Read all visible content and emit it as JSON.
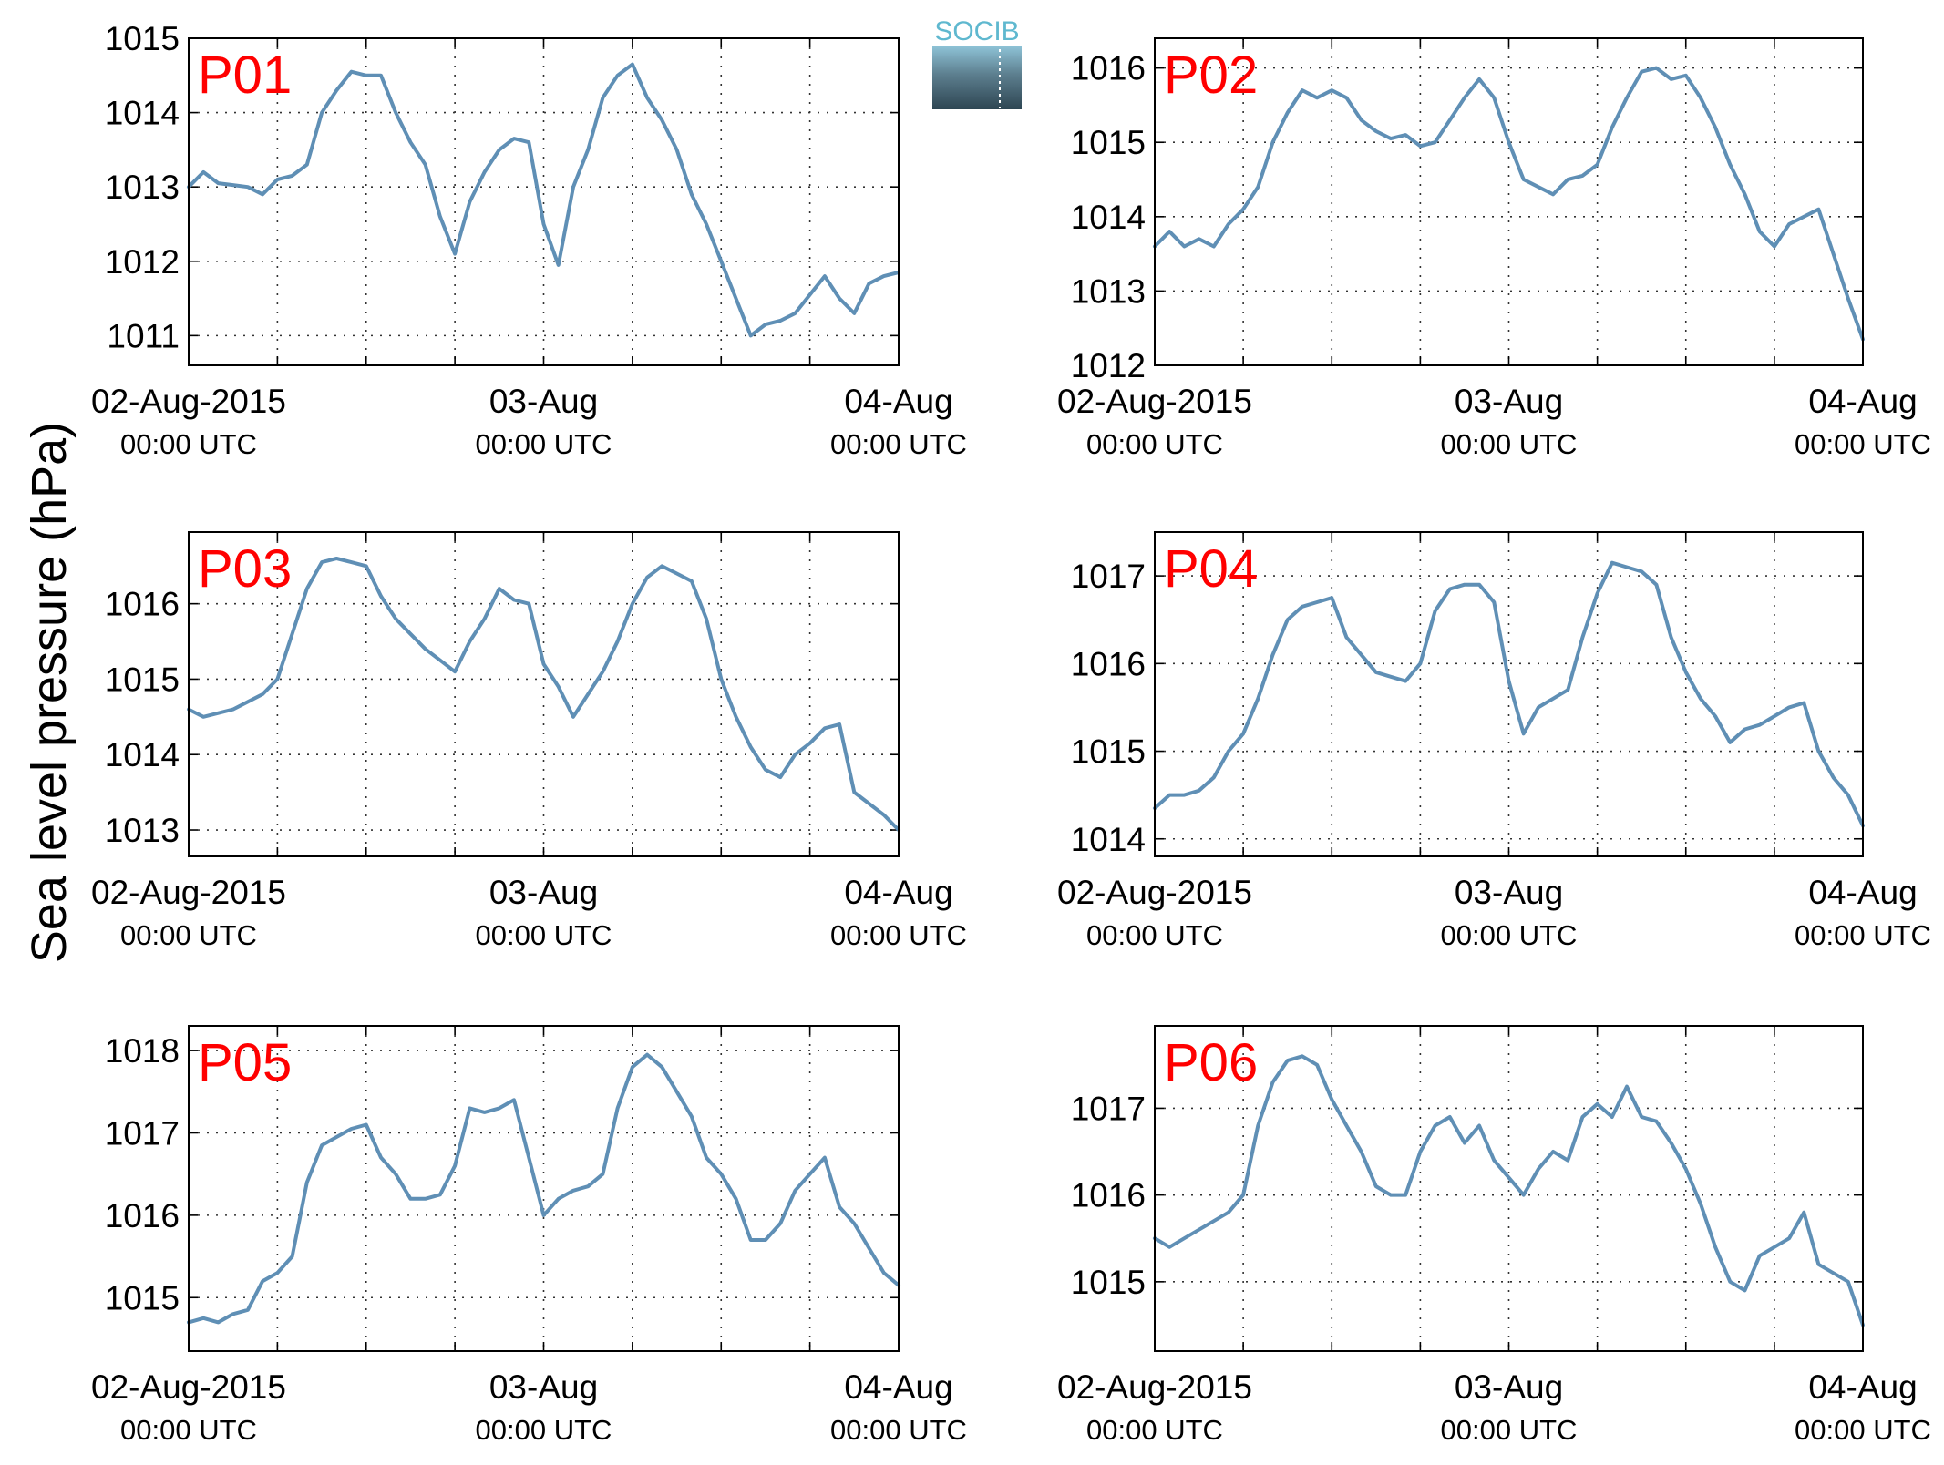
{
  "figure": {
    "ylabel": "Sea level pressure (hPa)",
    "logo_text": "SOCIB",
    "series_color": "#5f8fb5",
    "label_color": "#ff0000"
  },
  "chart_data": [
    {
      "type": "line",
      "label": "P01",
      "xlim": [
        "02-Aug-2015 00:00 UTC",
        "04-Aug-2015 00:00 UTC"
      ],
      "x_ticks": [
        "02-Aug-2015\n00:00 UTC",
        "03-Aug\n00:00 UTC",
        "04-Aug\n00:00 UTC"
      ],
      "ylim": [
        1010.6,
        1015.0
      ],
      "y_ticks": [
        1011,
        1012,
        1013,
        1014,
        1015
      ],
      "grid": true,
      "x_hours": [
        0,
        1,
        2,
        4,
        5,
        6,
        7,
        8,
        9,
        10,
        11,
        12,
        13,
        14,
        15,
        16,
        17,
        18,
        19,
        20,
        21,
        22,
        23,
        24,
        25,
        26,
        27,
        28,
        29,
        30,
        31,
        32,
        33,
        34,
        35,
        36,
        37,
        38,
        39,
        40,
        41,
        42,
        43,
        44,
        45,
        46,
        47,
        48
      ],
      "values": [
        1013.0,
        1013.2,
        1013.05,
        1013.0,
        1012.9,
        1013.1,
        1013.15,
        1013.3,
        1014.0,
        1014.3,
        1014.55,
        1014.5,
        1014.5,
        1014.0,
        1013.6,
        1013.3,
        1012.6,
        1012.1,
        1012.8,
        1013.2,
        1013.5,
        1013.65,
        1013.6,
        1012.5,
        1011.95,
        1013.0,
        1013.5,
        1014.2,
        1014.5,
        1014.65,
        1014.2,
        1013.9,
        1013.5,
        1012.9,
        1012.5,
        1012.0,
        1011.5,
        1011.0,
        1011.15,
        1011.2,
        1011.3,
        1011.55,
        1011.8,
        1011.5,
        1011.3,
        1011.7,
        1011.8,
        1011.85
      ]
    },
    {
      "type": "line",
      "label": "P02",
      "xlim": [
        "02-Aug-2015 00:00 UTC",
        "04-Aug-2015 00:00 UTC"
      ],
      "x_ticks": [
        "02-Aug-2015\n00:00 UTC",
        "03-Aug\n00:00 UTC",
        "04-Aug\n00:00 UTC"
      ],
      "ylim": [
        1012.0,
        1016.4
      ],
      "y_ticks": [
        1012,
        1013,
        1014,
        1015,
        1016
      ],
      "grid": true,
      "x_hours": [
        0,
        1,
        2,
        3,
        4,
        5,
        6,
        7,
        8,
        9,
        10,
        11,
        12,
        13,
        14,
        15,
        16,
        17,
        18,
        19,
        20,
        21,
        22,
        23,
        24,
        25,
        26,
        27,
        28,
        29,
        30,
        31,
        32,
        33,
        34,
        35,
        36,
        37,
        38,
        39,
        40,
        41,
        42,
        43,
        44,
        45,
        46,
        47,
        48
      ],
      "values": [
        1013.6,
        1013.8,
        1013.6,
        1013.7,
        1013.6,
        1013.9,
        1014.1,
        1014.4,
        1015.0,
        1015.4,
        1015.7,
        1015.6,
        1015.7,
        1015.6,
        1015.3,
        1015.15,
        1015.05,
        1015.1,
        1014.95,
        1015.0,
        1015.3,
        1015.6,
        1015.85,
        1015.6,
        1015.0,
        1014.5,
        1014.4,
        1014.3,
        1014.5,
        1014.55,
        1014.7,
        1015.2,
        1015.6,
        1015.95,
        1016.0,
        1015.85,
        1015.9,
        1015.6,
        1015.2,
        1014.7,
        1014.3,
        1013.8,
        1013.6,
        1013.9,
        1014.0,
        1014.1,
        1013.5,
        1012.9,
        1012.35
      ]
    },
    {
      "type": "line",
      "label": "P03",
      "xlim": [
        "02-Aug-2015 00:00 UTC",
        "04-Aug-2015 00:00 UTC"
      ],
      "x_ticks": [
        "02-Aug-2015\n00:00 UTC",
        "03-Aug\n00:00 UTC",
        "04-Aug\n00:00 UTC"
      ],
      "ylim": [
        1012.65,
        1016.95
      ],
      "y_ticks": [
        1013,
        1014,
        1015,
        1016
      ],
      "grid": true,
      "x_hours": [
        0,
        1,
        2,
        3,
        4,
        5,
        6,
        7,
        8,
        9,
        10,
        11,
        12,
        13,
        14,
        15,
        16,
        17,
        18,
        19,
        20,
        21,
        22,
        23,
        24,
        25,
        26,
        27,
        28,
        29,
        30,
        31,
        32,
        33,
        34,
        35,
        36,
        37,
        38,
        39,
        40,
        41,
        42,
        43,
        44,
        45,
        46,
        47,
        48
      ],
      "values": [
        1014.6,
        1014.5,
        1014.55,
        1014.6,
        1014.7,
        1014.8,
        1015.0,
        1015.6,
        1016.2,
        1016.55,
        1016.6,
        1016.55,
        1016.5,
        1016.1,
        1015.8,
        1015.6,
        1015.4,
        1015.25,
        1015.1,
        1015.5,
        1015.8,
        1016.2,
        1016.05,
        1016.0,
        1015.2,
        1014.9,
        1014.5,
        1014.8,
        1015.1,
        1015.5,
        1016.0,
        1016.35,
        1016.5,
        1016.4,
        1016.3,
        1015.8,
        1015.0,
        1014.5,
        1014.1,
        1013.8,
        1013.7,
        1014.0,
        1014.15,
        1014.35,
        1014.4,
        1013.5,
        1013.35,
        1013.2,
        1013.0
      ]
    },
    {
      "type": "line",
      "label": "P04",
      "xlim": [
        "02-Aug-2015 00:00 UTC",
        "04-Aug-2015 00:00 UTC"
      ],
      "x_ticks": [
        "02-Aug-2015\n00:00 UTC",
        "03-Aug\n00:00 UTC",
        "04-Aug\n00:00 UTC"
      ],
      "ylim": [
        1013.8,
        1017.5
      ],
      "y_ticks": [
        1014,
        1015,
        1016,
        1017
      ],
      "grid": true,
      "x_hours": [
        0,
        1,
        2,
        3,
        4,
        5,
        6,
        7,
        8,
        9,
        10,
        11,
        12,
        13,
        14,
        15,
        16,
        17,
        18,
        19,
        20,
        21,
        22,
        23,
        24,
        25,
        26,
        27,
        28,
        29,
        30,
        31,
        32,
        33,
        34,
        35,
        36,
        37,
        38,
        39,
        40,
        41,
        42,
        43,
        44,
        45,
        46,
        47,
        48
      ],
      "values": [
        1014.35,
        1014.5,
        1014.5,
        1014.55,
        1014.7,
        1015.0,
        1015.2,
        1015.6,
        1016.1,
        1016.5,
        1016.65,
        1016.7,
        1016.75,
        1016.3,
        1016.1,
        1015.9,
        1015.85,
        1015.8,
        1016.0,
        1016.6,
        1016.85,
        1016.9,
        1016.9,
        1016.7,
        1015.8,
        1015.2,
        1015.5,
        1015.6,
        1015.7,
        1016.3,
        1016.8,
        1017.15,
        1017.1,
        1017.05,
        1016.9,
        1016.3,
        1015.9,
        1015.6,
        1015.4,
        1015.1,
        1015.25,
        1015.3,
        1015.4,
        1015.5,
        1015.55,
        1015.0,
        1014.7,
        1014.5,
        1014.15
      ]
    },
    {
      "type": "line",
      "label": "P05",
      "xlim": [
        "02-Aug-2015 00:00 UTC",
        "04-Aug-2015 00:00 UTC"
      ],
      "x_ticks": [
        "02-Aug-2015\n00:00 UTC",
        "03-Aug\n00:00 UTC",
        "04-Aug\n00:00 UTC"
      ],
      "ylim": [
        1014.35,
        1018.3
      ],
      "y_ticks": [
        1015,
        1016,
        1017,
        1018
      ],
      "grid": true,
      "x_hours": [
        0,
        1,
        2,
        3,
        4,
        5,
        6,
        7,
        8,
        9,
        10,
        11,
        12,
        13,
        14,
        15,
        16,
        17,
        18,
        19,
        20,
        21,
        22,
        23,
        24,
        25,
        26,
        27,
        28,
        29,
        30,
        31,
        32,
        33,
        34,
        35,
        36,
        37,
        38,
        39,
        40,
        41,
        42,
        43,
        44,
        45,
        46,
        47,
        48
      ],
      "values": [
        1014.7,
        1014.75,
        1014.7,
        1014.8,
        1014.85,
        1015.2,
        1015.3,
        1015.5,
        1016.4,
        1016.85,
        1016.95,
        1017.05,
        1017.1,
        1016.7,
        1016.5,
        1016.2,
        1016.2,
        1016.25,
        1016.6,
        1017.3,
        1017.25,
        1017.3,
        1017.4,
        1016.7,
        1016.0,
        1016.2,
        1016.3,
        1016.35,
        1016.5,
        1017.3,
        1017.8,
        1017.95,
        1017.8,
        1017.5,
        1017.2,
        1016.7,
        1016.5,
        1016.2,
        1015.7,
        1015.7,
        1015.9,
        1016.3,
        1016.5,
        1016.7,
        1016.1,
        1015.9,
        1015.6,
        1015.3,
        1015.15
      ]
    },
    {
      "type": "line",
      "label": "P06",
      "xlim": [
        "02-Aug-2015 00:00 UTC",
        "04-Aug-2015 00:00 UTC"
      ],
      "x_ticks": [
        "02-Aug-2015\n00:00 UTC",
        "03-Aug\n00:00 UTC",
        "04-Aug\n00:00 UTC"
      ],
      "ylim": [
        1014.2,
        1017.95
      ],
      "y_ticks": [
        1015,
        1016,
        1017
      ],
      "grid": true,
      "x_hours": [
        0,
        1,
        2,
        3,
        4,
        5,
        6,
        7,
        8,
        9,
        10,
        11,
        12,
        13,
        14,
        15,
        16,
        17,
        18,
        19,
        20,
        21,
        22,
        23,
        24,
        25,
        26,
        27,
        28,
        29,
        30,
        31,
        32,
        33,
        34,
        35,
        36,
        37,
        38,
        39,
        40,
        41,
        42,
        43,
        44,
        45,
        46,
        47,
        48
      ],
      "values": [
        1015.5,
        1015.4,
        1015.5,
        1015.6,
        1015.7,
        1015.8,
        1016.0,
        1016.8,
        1017.3,
        1017.55,
        1017.6,
        1017.5,
        1017.1,
        1016.8,
        1016.5,
        1016.1,
        1016.0,
        1016.0,
        1016.5,
        1016.8,
        1016.9,
        1016.6,
        1016.8,
        1016.4,
        1016.2,
        1016.0,
        1016.3,
        1016.5,
        1016.4,
        1016.9,
        1017.05,
        1016.9,
        1017.25,
        1016.9,
        1016.85,
        1016.6,
        1016.3,
        1015.9,
        1015.4,
        1015.0,
        1014.9,
        1015.3,
        1015.4,
        1015.5,
        1015.8,
        1015.2,
        1015.1,
        1015.0,
        1014.5
      ]
    }
  ]
}
